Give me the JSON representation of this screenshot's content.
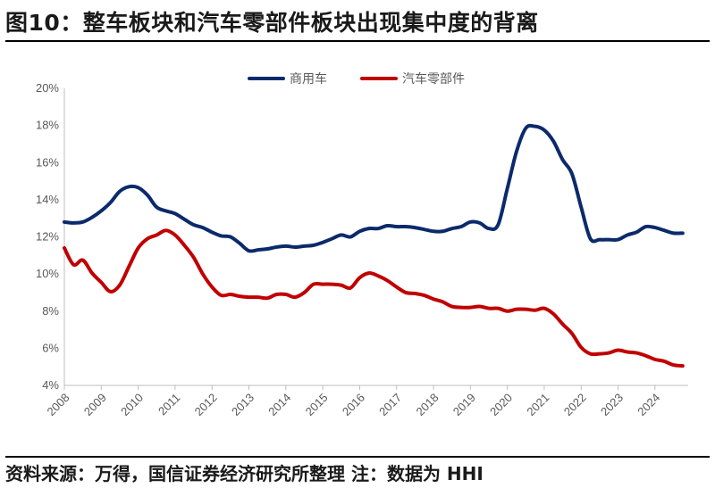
{
  "title": "图10：整车板块和汽车零部件板块出现集中度的背离",
  "source": "资料来源：万得，国信证券经济研究所整理 注：数据为 HHI",
  "chart_data": {
    "type": "line",
    "ylim": [
      0.04,
      0.2
    ],
    "yticks": [
      "20%",
      "18%",
      "16%",
      "14%",
      "12%",
      "10%",
      "8%",
      "6%",
      "4%"
    ],
    "ytick_values": [
      0.2,
      0.18,
      0.16,
      0.14,
      0.12,
      0.1,
      0.08,
      0.06,
      0.04
    ],
    "xlim": [
      2008,
      2024.9
    ],
    "xticks": [
      "2008",
      "2009",
      "2010",
      "2011",
      "2012",
      "2013",
      "2014",
      "2015",
      "2016",
      "2017",
      "2018",
      "2019",
      "2020",
      "2021",
      "2022",
      "2023",
      "2024"
    ],
    "xtick_values": [
      2008,
      2009,
      2010,
      2011,
      2012,
      2013,
      2014,
      2015,
      2016,
      2017,
      2018,
      2019,
      2020,
      2021,
      2022,
      2023,
      2024
    ],
    "legend_position": "top-center",
    "series": [
      {
        "name": "商用车",
        "color": "#0b2a6b",
        "x": [
          2008.0,
          2008.25,
          2008.5,
          2008.75,
          2009.0,
          2009.25,
          2009.5,
          2009.75,
          2010.0,
          2010.25,
          2010.5,
          2010.75,
          2011.0,
          2011.25,
          2011.5,
          2011.75,
          2012.0,
          2012.25,
          2012.5,
          2012.75,
          2013.0,
          2013.25,
          2013.5,
          2013.75,
          2014.0,
          2014.25,
          2014.5,
          2014.75,
          2015.0,
          2015.25,
          2015.5,
          2015.75,
          2016.0,
          2016.25,
          2016.5,
          2016.75,
          2017.0,
          2017.25,
          2017.5,
          2017.75,
          2018.0,
          2018.25,
          2018.5,
          2018.75,
          2019.0,
          2019.25,
          2019.5,
          2019.75,
          2020.0,
          2020.25,
          2020.5,
          2020.75,
          2021.0,
          2021.25,
          2021.5,
          2021.75,
          2022.0,
          2022.25,
          2022.5,
          2022.75,
          2023.0,
          2023.25,
          2023.5,
          2023.75,
          2024.0,
          2024.25,
          2024.5,
          2024.75
        ],
        "values": [
          0.128,
          0.1275,
          0.128,
          0.1305,
          0.134,
          0.1385,
          0.1445,
          0.147,
          0.1465,
          0.1425,
          0.136,
          0.134,
          0.1325,
          0.1295,
          0.1265,
          0.125,
          0.1225,
          0.1205,
          0.12,
          0.1165,
          0.1125,
          0.113,
          0.1135,
          0.1145,
          0.115,
          0.1145,
          0.115,
          0.1155,
          0.117,
          0.119,
          0.121,
          0.12,
          0.123,
          0.1245,
          0.1245,
          0.126,
          0.1255,
          0.1255,
          0.125,
          0.124,
          0.123,
          0.123,
          0.1245,
          0.1255,
          0.128,
          0.1275,
          0.1245,
          0.1265,
          0.146,
          0.166,
          0.1785,
          0.1795,
          0.1775,
          0.1715,
          0.1615,
          0.154,
          0.136,
          0.119,
          0.1185,
          0.1185,
          0.1185,
          0.121,
          0.1225,
          0.1255,
          0.125,
          0.1235,
          0.122,
          0.122
        ]
      },
      {
        "name": "汽车零部件",
        "color": "#c00000",
        "x": [
          2008.0,
          2008.25,
          2008.5,
          2008.75,
          2009.0,
          2009.25,
          2009.5,
          2009.75,
          2010.0,
          2010.25,
          2010.5,
          2010.75,
          2011.0,
          2011.25,
          2011.5,
          2011.75,
          2012.0,
          2012.25,
          2012.5,
          2012.75,
          2013.0,
          2013.25,
          2013.5,
          2013.75,
          2014.0,
          2014.25,
          2014.5,
          2014.75,
          2015.0,
          2015.25,
          2015.5,
          2015.75,
          2016.0,
          2016.25,
          2016.5,
          2016.75,
          2017.0,
          2017.25,
          2017.5,
          2017.75,
          2018.0,
          2018.25,
          2018.5,
          2018.75,
          2019.0,
          2019.25,
          2019.5,
          2019.75,
          2020.0,
          2020.25,
          2020.5,
          2020.75,
          2021.0,
          2021.25,
          2021.5,
          2021.75,
          2022.0,
          2022.25,
          2022.5,
          2022.75,
          2023.0,
          2023.25,
          2023.5,
          2023.75,
          2024.0,
          2024.25,
          2024.5,
          2024.75
        ],
        "values": [
          0.114,
          0.105,
          0.1075,
          0.1005,
          0.0955,
          0.0905,
          0.094,
          0.104,
          0.114,
          0.119,
          0.121,
          0.1235,
          0.121,
          0.1155,
          0.109,
          0.1,
          0.093,
          0.0885,
          0.089,
          0.088,
          0.0875,
          0.0875,
          0.087,
          0.089,
          0.089,
          0.0875,
          0.09,
          0.0945,
          0.0945,
          0.0945,
          0.094,
          0.0925,
          0.098,
          0.1005,
          0.099,
          0.0965,
          0.093,
          0.09,
          0.0895,
          0.0885,
          0.0865,
          0.085,
          0.0825,
          0.082,
          0.082,
          0.0825,
          0.0815,
          0.0815,
          0.08,
          0.081,
          0.081,
          0.0805,
          0.0815,
          0.0785,
          0.073,
          0.068,
          0.0605,
          0.057,
          0.057,
          0.0575,
          0.059,
          0.058,
          0.0575,
          0.056,
          0.054,
          0.053,
          0.051,
          0.0505
        ]
      }
    ]
  }
}
